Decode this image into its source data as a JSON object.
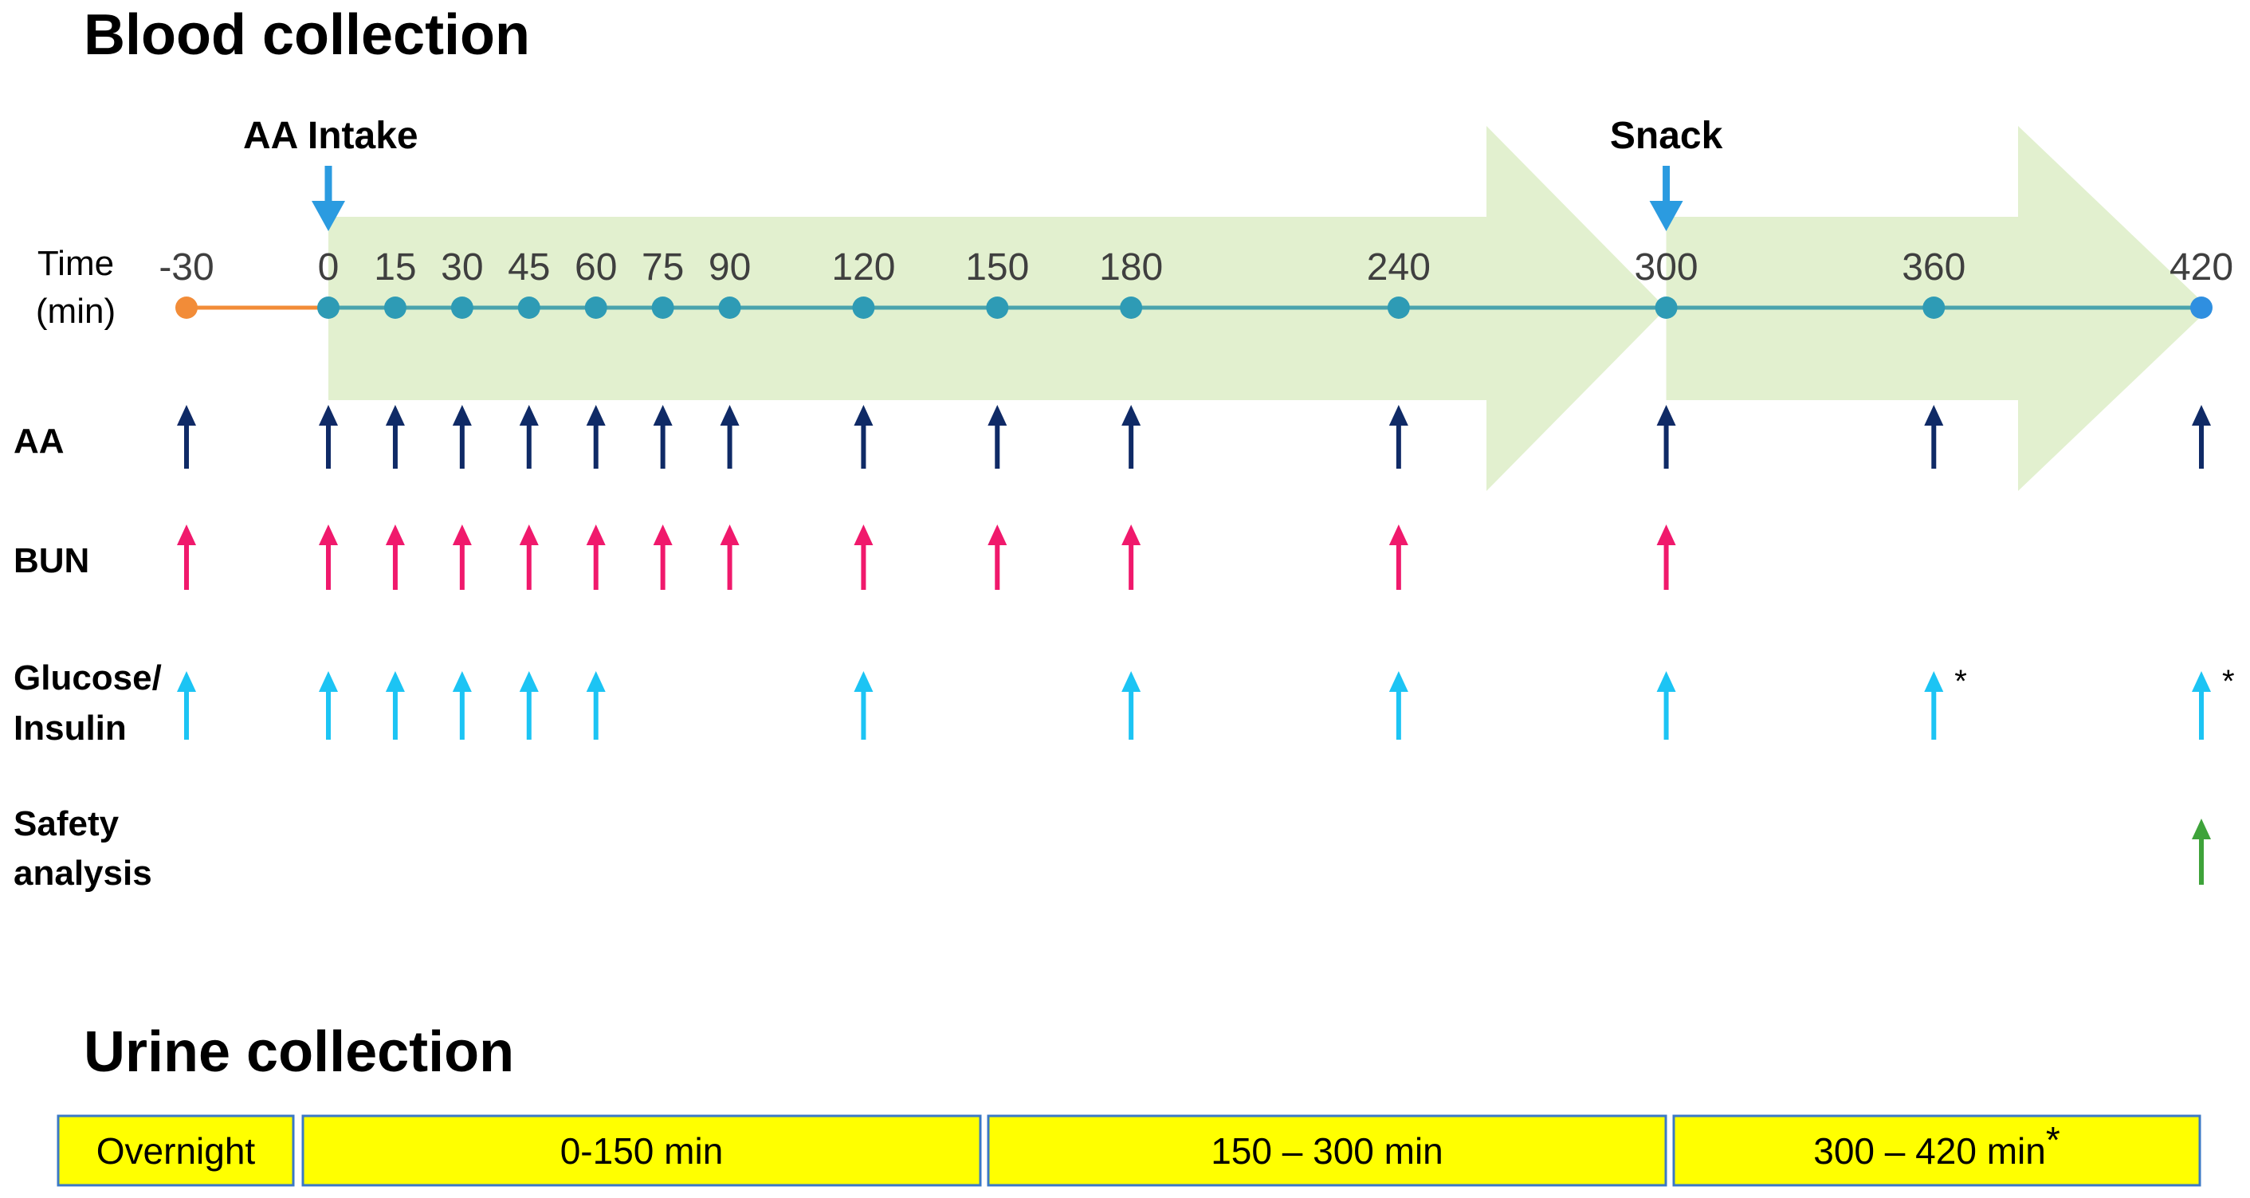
{
  "blood_title": "Blood collection",
  "urine_title": "Urine collection",
  "time_axis_label": [
    "Time",
    "(min)"
  ],
  "colors": {
    "band": "#e2f0cf",
    "timeline": "#4aa3ad",
    "pre_line": "#f28c38",
    "marker": "#2e9bb5",
    "pre_marker": "#f28c38",
    "end_marker": "#2f8fe0",
    "event_arrow": "#2b9be0",
    "AA": "#0f2a66",
    "BUN": "#f0196c",
    "glucose": "#1cc4f4",
    "safety": "#3ea33a",
    "urine_fill": "#ffff00",
    "urine_border": "#3b78c6"
  },
  "events": [
    {
      "label": "AA Intake",
      "time": 0
    },
    {
      "label": "Snack",
      "time": 300
    }
  ],
  "time_points": [
    -30,
    0,
    15,
    30,
    45,
    60,
    75,
    90,
    120,
    150,
    180,
    240,
    300,
    360,
    420
  ],
  "time_labels": [
    "-30",
    "0",
    "15",
    "30",
    "45",
    "60",
    "75",
    "90",
    "120",
    "150",
    "180",
    "240",
    "300",
    "360",
    "420"
  ],
  "rows": [
    {
      "key": "aa",
      "label_lines": [
        "AA"
      ],
      "color_key": "AA",
      "times": [
        -30,
        0,
        15,
        30,
        45,
        60,
        75,
        90,
        120,
        150,
        180,
        240,
        300,
        360,
        420
      ],
      "starred": []
    },
    {
      "key": "bun",
      "label_lines": [
        "BUN"
      ],
      "color_key": "BUN",
      "times": [
        -30,
        0,
        15,
        30,
        45,
        60,
        75,
        90,
        120,
        150,
        180,
        240,
        300
      ],
      "starred": []
    },
    {
      "key": "glucose-insulin",
      "label_lines": [
        "Glucose/",
        "Insulin"
      ],
      "color_key": "glucose",
      "times": [
        -30,
        0,
        15,
        30,
        45,
        60,
        120,
        180,
        240,
        300,
        360,
        420
      ],
      "starred": [
        360,
        420
      ]
    },
    {
      "key": "safety-analysis",
      "label_lines": [
        "Safety",
        "analysis"
      ],
      "color_key": "safety",
      "times": [
        420
      ],
      "starred": []
    }
  ],
  "star_symbol": "*",
  "urine_segments": [
    {
      "label": "Overnight",
      "star": ""
    },
    {
      "label": "0-150 min",
      "star": ""
    },
    {
      "label": "150 – 300 min",
      "star": ""
    },
    {
      "label": "300 – 420 min",
      "star": "*"
    }
  ]
}
